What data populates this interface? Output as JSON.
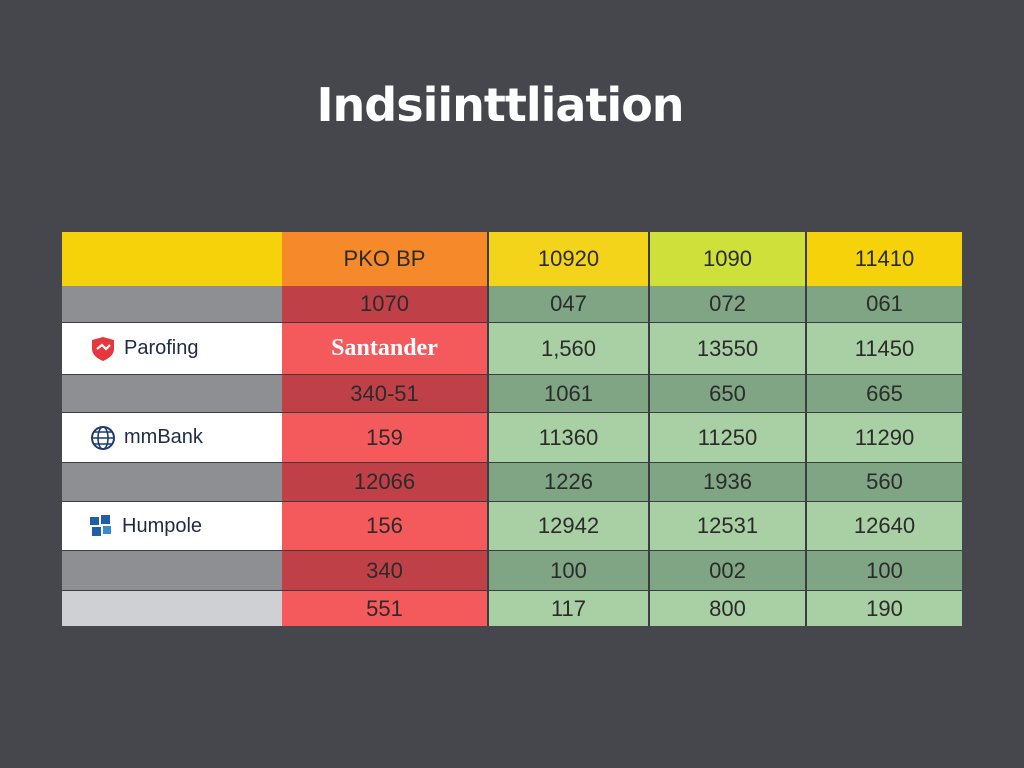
{
  "title": "Indsiinttliation",
  "chart_data": {
    "type": "table",
    "header": [
      "",
      "PKO BP",
      "10920",
      "1090",
      "11410"
    ],
    "rows": [
      {
        "label": "",
        "logo": "",
        "values": [
          "1070",
          "047",
          "072",
          "061"
        ]
      },
      {
        "label": "Parofing",
        "logo": "bank-shield-icon",
        "values": [
          "Santander",
          "1,560",
          "13550",
          "11450"
        ]
      },
      {
        "label": "",
        "logo": "",
        "values": [
          "340-51",
          "1061",
          "650",
          "665"
        ]
      },
      {
        "label": "mmBank",
        "logo": "globe-icon",
        "values": [
          "159",
          "11360",
          "11250",
          "11290"
        ]
      },
      {
        "label": "",
        "logo": "",
        "values": [
          "12066",
          "1226",
          "1936",
          "560"
        ]
      },
      {
        "label": "Humpole",
        "logo": "puzzle-icon",
        "values": [
          "156",
          "12942",
          "12531",
          "12640"
        ]
      },
      {
        "label": "",
        "logo": "",
        "values": [
          "340",
          "100",
          "002",
          "100"
        ]
      },
      {
        "label": "",
        "logo": "",
        "values": [
          "551",
          "117",
          "800",
          "190"
        ]
      }
    ]
  },
  "colors": {
    "background": "#45474d",
    "header_yellow": "#f6d20a",
    "header_orange": "#f68a2a",
    "header_lime": "#cfe03a",
    "red_dark": "#c04048",
    "red_light": "#f45a5c",
    "green_dark": "#7fa585",
    "green_light": "#a9cfa4",
    "gray_dark": "#8d8f93",
    "white": "#ffffff",
    "gray_light": "#cfd0d3"
  }
}
